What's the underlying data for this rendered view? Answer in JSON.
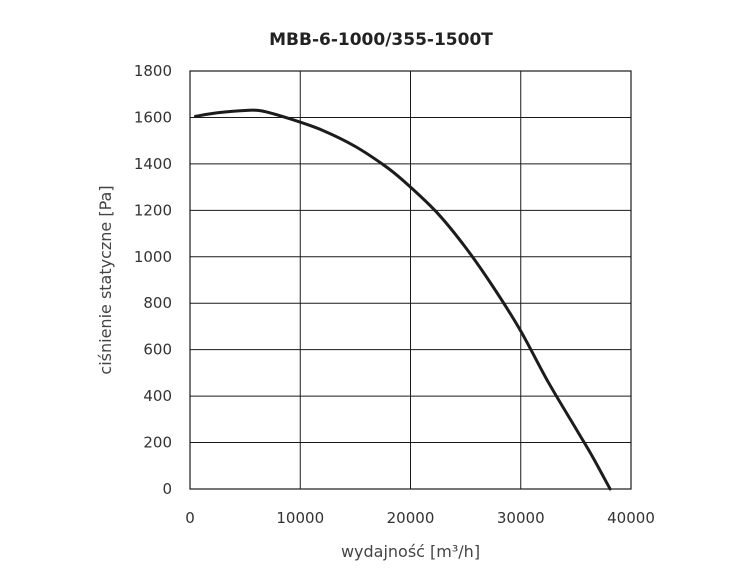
{
  "chart_data": {
    "type": "line",
    "title": "MBB-6-1000/355-1500T",
    "xlabel": "wydajność [m³/h]",
    "ylabel": "ciśnienie statyczne [Pa]",
    "xlim": [
      0,
      40000
    ],
    "ylim": [
      0,
      1800
    ],
    "x_ticks": [
      0,
      10000,
      20000,
      30000,
      40000
    ],
    "y_ticks": [
      0,
      200,
      400,
      600,
      800,
      1000,
      1200,
      1400,
      1600,
      1800
    ],
    "x_tick_labels": [
      "0",
      "10000",
      "20000",
      "30000",
      "40000"
    ],
    "y_tick_labels": [
      "0",
      "200",
      "400",
      "600",
      "800",
      "1000",
      "1200",
      "1400",
      "1600",
      "1800"
    ],
    "grid": true,
    "series": [
      {
        "x": [
          500,
          2500,
          5000,
          6500,
          9000,
          12000,
          15000,
          18000,
          20000,
          22500,
          25000,
          27500,
          30000,
          32500,
          35000,
          36500,
          38100
        ],
        "y": [
          1605,
          1620,
          1630,
          1628,
          1595,
          1545,
          1475,
          1380,
          1300,
          1185,
          1040,
          870,
          680,
          460,
          260,
          140,
          0
        ]
      }
    ]
  }
}
